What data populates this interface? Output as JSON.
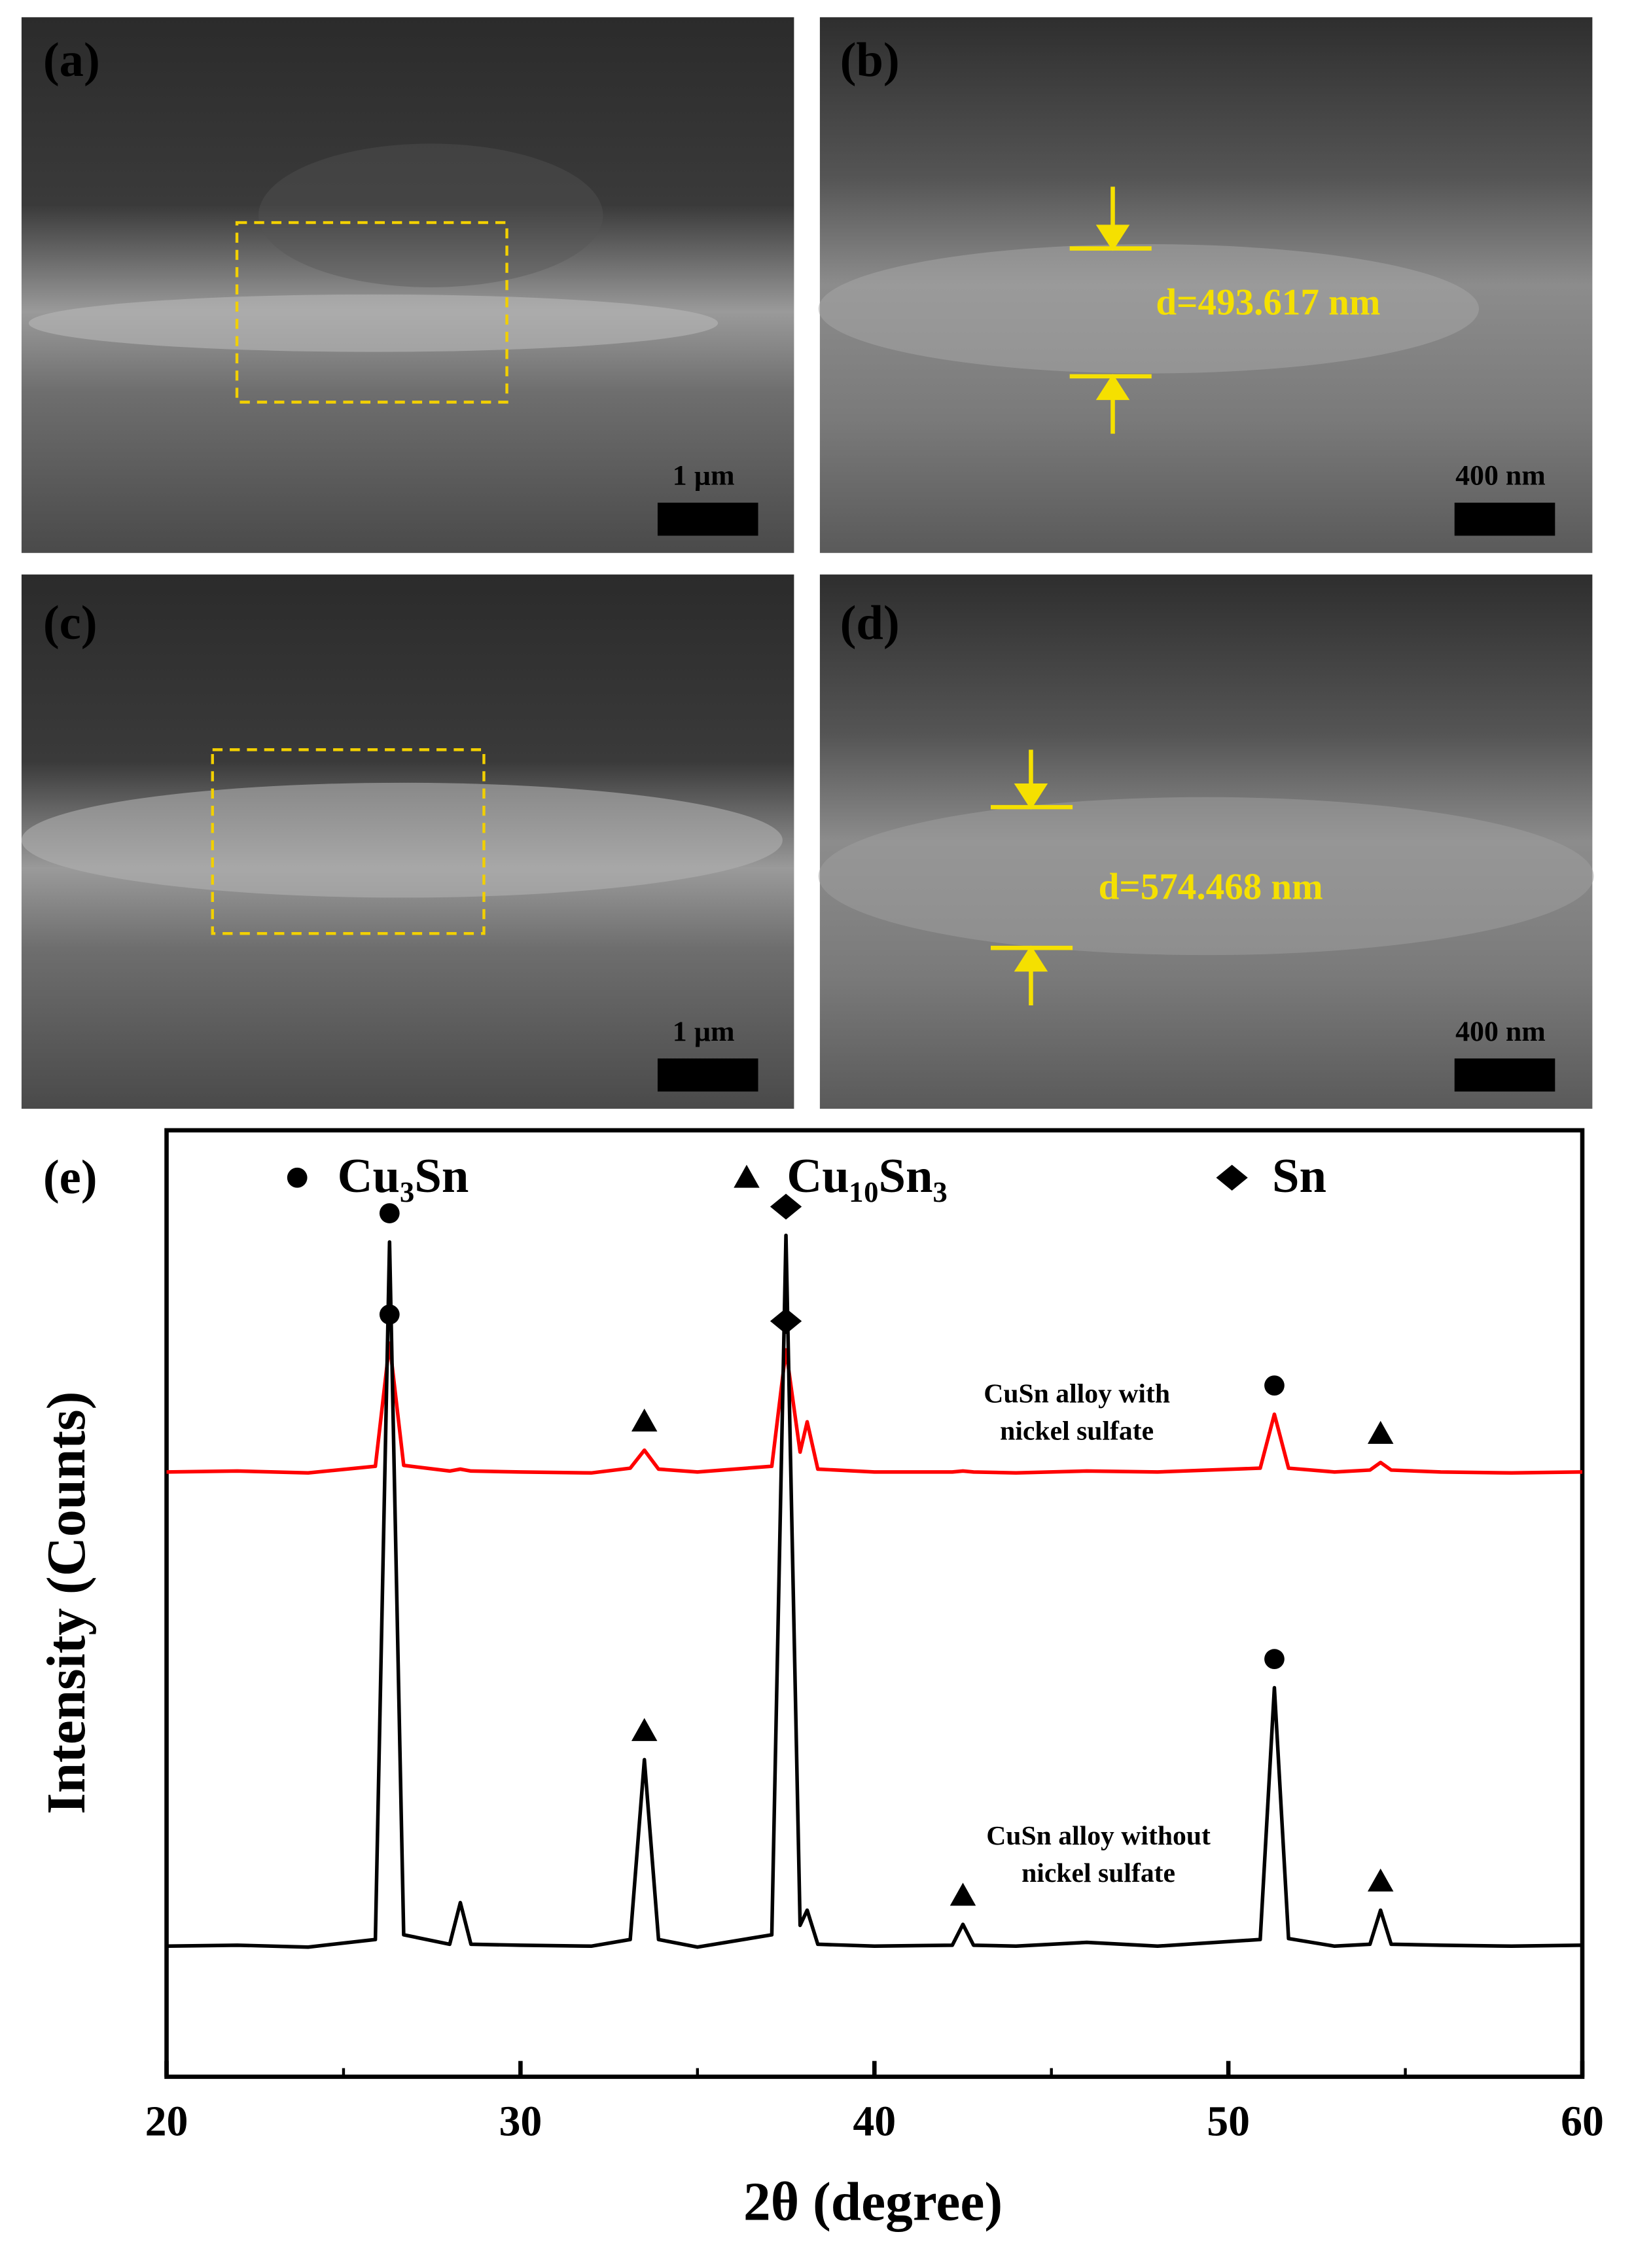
{
  "panels": [
    {
      "label": "(a)",
      "scale": "1 µm"
    },
    {
      "label": "(b)",
      "scale": "400 nm",
      "thickness": "d=493.617 nm"
    },
    {
      "label": "(c)",
      "scale": "1 µm"
    },
    {
      "label": "(d)",
      "scale": "400 nm",
      "thickness": "d=574.468 nm"
    }
  ],
  "chart_data": {
    "type": "line",
    "panel_label": "(e)",
    "xlabel": "2θ (degree)",
    "ylabel": "Intensity (Counts)",
    "xlim": [
      20,
      60
    ],
    "xticks": [
      20,
      30,
      40,
      50,
      60
    ],
    "xminorticks": [
      25,
      35,
      45,
      55
    ],
    "ylim": [
      0,
      100
    ],
    "phases": [
      {
        "name": "Cu₃Sn",
        "symbol": "circle"
      },
      {
        "name": "Cu₁₀Sn₃",
        "symbol": "triangle"
      },
      {
        "name": "Sn",
        "symbol": "diamond"
      }
    ],
    "x": [
      20,
      22,
      24,
      25.9,
      26.3,
      26.7,
      28,
      28.3,
      28.6,
      30,
      32,
      33.1,
      33.5,
      33.9,
      35,
      37.1,
      37.5,
      37.9,
      38.1,
      38.4,
      40,
      42.2,
      42.5,
      42.8,
      44,
      46,
      48,
      50.9,
      51.3,
      51.7,
      53,
      54.0,
      54.3,
      54.6,
      56,
      58,
      60
    ],
    "series": [
      {
        "label": [
          "CuSn alloy with",
          "nickel sulfate"
        ],
        "color": "#ff0000",
        "values": [
          63.9,
          64.0,
          63.8,
          64.5,
          77.5,
          64.6,
          64.0,
          64.2,
          64.0,
          63.9,
          63.8,
          64.3,
          66.2,
          64.2,
          63.9,
          64.5,
          76.8,
          66,
          69.2,
          64.2,
          63.9,
          63.9,
          64.0,
          63.9,
          63.8,
          64.0,
          63.9,
          64.3,
          70.0,
          64.3,
          63.9,
          64.1,
          64.9,
          64.1,
          63.9,
          63.8,
          63.9
        ],
        "peaks": [
          {
            "x": 26.3,
            "phase": 0
          },
          {
            "x": 33.5,
            "phase": 1
          },
          {
            "x": 37.5,
            "phase": 2
          },
          {
            "x": 51.3,
            "phase": 0
          },
          {
            "x": 54.3,
            "phase": 1
          }
        ]
      },
      {
        "label": [
          "CuSn alloy without",
          "nickel sulfate"
        ],
        "color": "#000000",
        "values": [
          13.8,
          13.9,
          13.7,
          14.5,
          88.2,
          15,
          14,
          18.4,
          14,
          13.9,
          13.8,
          14.5,
          33.5,
          14.5,
          13.7,
          15,
          88.9,
          16,
          17.6,
          14,
          13.8,
          13.9,
          16.1,
          13.9,
          13.8,
          14.2,
          13.8,
          14.5,
          41.1,
          14.6,
          13.8,
          14,
          17.6,
          14,
          13.9,
          13.8,
          13.9
        ],
        "peaks": [
          {
            "x": 26.3,
            "phase": 0
          },
          {
            "x": 33.5,
            "phase": 1
          },
          {
            "x": 37.5,
            "phase": 2
          },
          {
            "x": 42.5,
            "phase": 1
          },
          {
            "x": 51.3,
            "phase": 0
          },
          {
            "x": 54.3,
            "phase": 1
          }
        ]
      }
    ]
  }
}
